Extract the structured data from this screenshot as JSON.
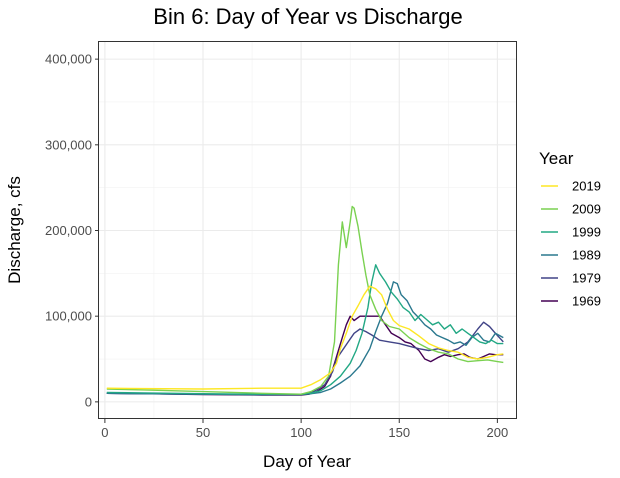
{
  "chart_data": {
    "type": "line",
    "title": "Bin 6: Day of Year vs Discharge",
    "xlabel": "Day of Year",
    "ylabel": "Discharge, cfs",
    "xlim": [
      -3,
      210
    ],
    "ylim": [
      -20000,
      420000
    ],
    "xticks": [
      0,
      50,
      100,
      150,
      200
    ],
    "yticks": [
      0,
      100000,
      200000,
      300000,
      400000
    ],
    "xtick_labels": [
      "0",
      "50",
      "100",
      "150",
      "200"
    ],
    "ytick_labels": [
      "0",
      "100,000",
      "200,000",
      "300,000",
      "400,000"
    ],
    "grid": true,
    "legend": {
      "title": "Year",
      "position": "right"
    },
    "series": [
      {
        "name": "2019",
        "color": "#FDE725",
        "points": [
          [
            1,
            16000
          ],
          [
            20,
            15500
          ],
          [
            50,
            15000
          ],
          [
            80,
            16000
          ],
          [
            100,
            16000
          ],
          [
            105,
            20000
          ],
          [
            110,
            26000
          ],
          [
            115,
            34000
          ],
          [
            118,
            45000
          ],
          [
            120,
            62000
          ],
          [
            123,
            80000
          ],
          [
            126,
            100000
          ],
          [
            129,
            112000
          ],
          [
            132,
            125000
          ],
          [
            135,
            135000
          ],
          [
            138,
            132000
          ],
          [
            141,
            125000
          ],
          [
            144,
            108000
          ],
          [
            147,
            95000
          ],
          [
            150,
            89000
          ],
          [
            155,
            85000
          ],
          [
            160,
            77000
          ],
          [
            165,
            68000
          ],
          [
            170,
            63000
          ],
          [
            175,
            60000
          ],
          [
            180,
            58000
          ],
          [
            185,
            52000
          ],
          [
            190,
            50000
          ],
          [
            195,
            52000
          ],
          [
            200,
            55000
          ],
          [
            203,
            56000
          ]
        ]
      },
      {
        "name": "2009",
        "color": "#7AD151",
        "points": [
          [
            1,
            15000
          ],
          [
            20,
            14000
          ],
          [
            50,
            12000
          ],
          [
            80,
            10000
          ],
          [
            100,
            9000
          ],
          [
            105,
            12000
          ],
          [
            110,
            18000
          ],
          [
            114,
            30000
          ],
          [
            117,
            70000
          ],
          [
            119,
            160000
          ],
          [
            121,
            210000
          ],
          [
            123,
            180000
          ],
          [
            125,
            210000
          ],
          [
            126,
            228000
          ],
          [
            127,
            226000
          ],
          [
            129,
            205000
          ],
          [
            131,
            175000
          ],
          [
            133,
            148000
          ],
          [
            135,
            125000
          ],
          [
            138,
            108000
          ],
          [
            141,
            95000
          ],
          [
            145,
            88000
          ],
          [
            150,
            85000
          ],
          [
            155,
            75000
          ],
          [
            160,
            68000
          ],
          [
            165,
            62000
          ],
          [
            170,
            58000
          ],
          [
            175,
            56000
          ],
          [
            180,
            50000
          ],
          [
            185,
            47000
          ],
          [
            190,
            48000
          ],
          [
            195,
            49000
          ],
          [
            200,
            47000
          ],
          [
            203,
            46000
          ]
        ]
      },
      {
        "name": "1999",
        "color": "#22A884",
        "points": [
          [
            1,
            11000
          ],
          [
            20,
            10500
          ],
          [
            50,
            9500
          ],
          [
            80,
            9000
          ],
          [
            100,
            9000
          ],
          [
            105,
            10000
          ],
          [
            110,
            13000
          ],
          [
            115,
            20000
          ],
          [
            120,
            30000
          ],
          [
            125,
            45000
          ],
          [
            128,
            60000
          ],
          [
            131,
            80000
          ],
          [
            134,
            110000
          ],
          [
            136,
            140000
          ],
          [
            138,
            160000
          ],
          [
            140,
            150000
          ],
          [
            143,
            140000
          ],
          [
            146,
            128000
          ],
          [
            149,
            120000
          ],
          [
            152,
            110000
          ],
          [
            155,
            105000
          ],
          [
            158,
            95000
          ],
          [
            161,
            102000
          ],
          [
            164,
            96000
          ],
          [
            167,
            90000
          ],
          [
            170,
            93000
          ],
          [
            173,
            85000
          ],
          [
            176,
            90000
          ],
          [
            179,
            80000
          ],
          [
            182,
            85000
          ],
          [
            185,
            80000
          ],
          [
            188,
            75000
          ],
          [
            191,
            70000
          ],
          [
            194,
            68000
          ],
          [
            197,
            72000
          ],
          [
            200,
            68000
          ],
          [
            203,
            68000
          ]
        ]
      },
      {
        "name": "1989",
        "color": "#2A788E",
        "points": [
          [
            1,
            10000
          ],
          [
            20,
            9500
          ],
          [
            50,
            9000
          ],
          [
            80,
            8500
          ],
          [
            100,
            8500
          ],
          [
            105,
            9500
          ],
          [
            110,
            11000
          ],
          [
            115,
            15000
          ],
          [
            120,
            22000
          ],
          [
            125,
            30000
          ],
          [
            130,
            42000
          ],
          [
            135,
            62000
          ],
          [
            138,
            82000
          ],
          [
            141,
            100000
          ],
          [
            144,
            115000
          ],
          [
            147,
            140000
          ],
          [
            149,
            138000
          ],
          [
            151,
            125000
          ],
          [
            154,
            118000
          ],
          [
            157,
            105000
          ],
          [
            160,
            98000
          ],
          [
            163,
            90000
          ],
          [
            166,
            85000
          ],
          [
            169,
            78000
          ],
          [
            172,
            75000
          ],
          [
            175,
            72000
          ],
          [
            178,
            68000
          ],
          [
            181,
            70000
          ],
          [
            184,
            66000
          ],
          [
            187,
            75000
          ],
          [
            190,
            80000
          ],
          [
            193,
            72000
          ],
          [
            196,
            70000
          ],
          [
            199,
            80000
          ],
          [
            203,
            75000
          ]
        ]
      },
      {
        "name": "1979",
        "color": "#414487",
        "points": [
          [
            1,
            10000
          ],
          [
            20,
            9500
          ],
          [
            50,
            9000
          ],
          [
            80,
            8500
          ],
          [
            100,
            8500
          ],
          [
            104,
            10000
          ],
          [
            108,
            14000
          ],
          [
            112,
            20000
          ],
          [
            116,
            35000
          ],
          [
            118,
            50000
          ],
          [
            121,
            60000
          ],
          [
            124,
            70000
          ],
          [
            127,
            80000
          ],
          [
            130,
            85000
          ],
          [
            133,
            82000
          ],
          [
            136,
            78000
          ],
          [
            140,
            72000
          ],
          [
            145,
            70000
          ],
          [
            150,
            68000
          ],
          [
            155,
            65000
          ],
          [
            160,
            62000
          ],
          [
            165,
            60000
          ],
          [
            170,
            62000
          ],
          [
            175,
            58000
          ],
          [
            180,
            62000
          ],
          [
            185,
            70000
          ],
          [
            190,
            85000
          ],
          [
            193,
            93000
          ],
          [
            196,
            88000
          ],
          [
            199,
            80000
          ],
          [
            203,
            70000
          ]
        ]
      },
      {
        "name": "1969",
        "color": "#440154",
        "points": [
          [
            1,
            10000
          ],
          [
            20,
            9500
          ],
          [
            50,
            8500
          ],
          [
            80,
            8000
          ],
          [
            100,
            8000
          ],
          [
            104,
            9000
          ],
          [
            108,
            12000
          ],
          [
            112,
            18000
          ],
          [
            115,
            30000
          ],
          [
            117,
            45000
          ],
          [
            119,
            60000
          ],
          [
            121,
            75000
          ],
          [
            123,
            90000
          ],
          [
            125,
            100000
          ],
          [
            127,
            95000
          ],
          [
            130,
            100000
          ],
          [
            135,
            100000
          ],
          [
            140,
            100000
          ],
          [
            143,
            90000
          ],
          [
            146,
            80000
          ],
          [
            150,
            75000
          ],
          [
            153,
            70000
          ],
          [
            156,
            68000
          ],
          [
            160,
            60000
          ],
          [
            163,
            50000
          ],
          [
            166,
            47000
          ],
          [
            170,
            52000
          ],
          [
            173,
            55000
          ],
          [
            176,
            53000
          ],
          [
            180,
            55000
          ],
          [
            183,
            56000
          ],
          [
            186,
            52000
          ],
          [
            190,
            50000
          ],
          [
            193,
            53000
          ],
          [
            196,
            56000
          ],
          [
            199,
            55000
          ],
          [
            203,
            55000
          ]
        ]
      }
    ]
  }
}
